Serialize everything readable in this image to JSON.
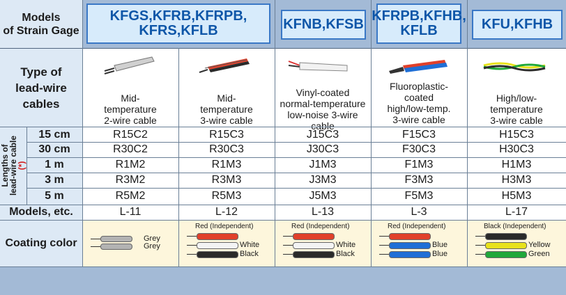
{
  "header": {
    "corner_label": "Models\nof Strain Gage",
    "models": [
      "KFGS,KFRB,KFRPB,\nKFRS,KFLB",
      "KFNB,KFSB",
      "KFRPB,KFHB,\nKFLB",
      "KFU,KFHB"
    ]
  },
  "rows": {
    "type_label": "Type of\nlead-wire\ncables",
    "lengths_label": "Lengths of\nlead-wire cable",
    "lengths_asterisk": "(*)",
    "models_label": "Models, etc.",
    "coating_label": "Coating color"
  },
  "columns": [
    {
      "description": "Mid-\ntemperature\n2-wire cable",
      "lengths": [
        "R15C2",
        "R30C2",
        "R1M2",
        "R3M2",
        "R5M2"
      ],
      "model": "L-11",
      "coating": {
        "top_label": "",
        "wires": [
          {
            "label": "Grey",
            "color": "#b3b3b3"
          },
          {
            "label": "Grey",
            "color": "#b3b3b3"
          }
        ]
      },
      "icon": "grey-2-wire-cable-icon"
    },
    {
      "description": "Mid-\ntemperature\n3-wire cable",
      "lengths": [
        "R15C3",
        "R30C3",
        "R1M3",
        "R3M3",
        "R5M3"
      ],
      "model": "L-12",
      "coating": {
        "top_label": "Red (Independent)",
        "wires": [
          {
            "label": "",
            "color": "#e1402a"
          },
          {
            "label": "White",
            "color": "#f4f4f4"
          },
          {
            "label": "Black",
            "color": "#2a2a2a"
          }
        ]
      },
      "icon": "red-white-black-cable-icon"
    },
    {
      "description": "Vinyl-coated\nnormal-temperature\nlow-noise 3-wire cable",
      "lengths": [
        "J15C3",
        "J30C3",
        "J1M3",
        "J3M3",
        "J5M3"
      ],
      "model": "L-13",
      "coating": {
        "top_label": "Red (Independent)",
        "wires": [
          {
            "label": "",
            "color": "#e1402a"
          },
          {
            "label": "White",
            "color": "#f4f4f4"
          },
          {
            "label": "Black",
            "color": "#2a2a2a"
          }
        ]
      },
      "icon": "white-vinyl-cable-icon"
    },
    {
      "description": "Fluoroplastic-\ncoated\nhigh/low-temp.\n3-wire cable",
      "lengths": [
        "F15C3",
        "F30C3",
        "F1M3",
        "F3M3",
        "F5M3"
      ],
      "model": "L-3",
      "coating": {
        "top_label": "Red (Independent)",
        "wires": [
          {
            "label": "",
            "color": "#e1402a"
          },
          {
            "label": "Blue",
            "color": "#1f6fd6"
          },
          {
            "label": "Blue",
            "color": "#1f6fd6"
          }
        ]
      },
      "icon": "red-blue-blue-cable-icon"
    },
    {
      "description": "High/low-\ntemperature\n3-wire cable",
      "lengths": [
        "H15C3",
        "H30C3",
        "H1M3",
        "H3M3",
        "H5M3"
      ],
      "model": "L-17",
      "coating": {
        "top_label": "Black (Independent)",
        "wires": [
          {
            "label": "",
            "color": "#2a2a2a"
          },
          {
            "label": "Yellow",
            "color": "#e8e21b"
          },
          {
            "label": "Green",
            "color": "#20a83a"
          }
        ]
      },
      "icon": "black-yellow-green-cable-icon"
    }
  ],
  "length_labels": [
    "15 cm",
    "30 cm",
    "1 m",
    "3 m",
    "5 m"
  ]
}
